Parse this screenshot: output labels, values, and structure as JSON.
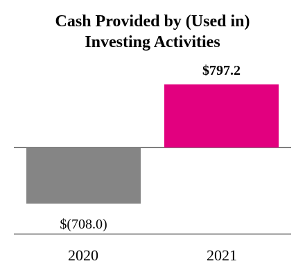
{
  "chart_data": {
    "type": "bar",
    "title_lines": [
      "Cash Provided by (Used in)",
      "Investing Activities"
    ],
    "categories": [
      "2020",
      "2021"
    ],
    "values": [
      -708.0,
      797.2
    ],
    "value_labels": [
      "$(708.0)",
      "$797.2"
    ],
    "ylim": [
      -820,
      870
    ],
    "grid": false,
    "legend": "none",
    "colors": [
      "#858585",
      "#e2007f"
    ],
    "baseline_color": "#7f7f7f",
    "axis_color": "#a6a6a6"
  }
}
